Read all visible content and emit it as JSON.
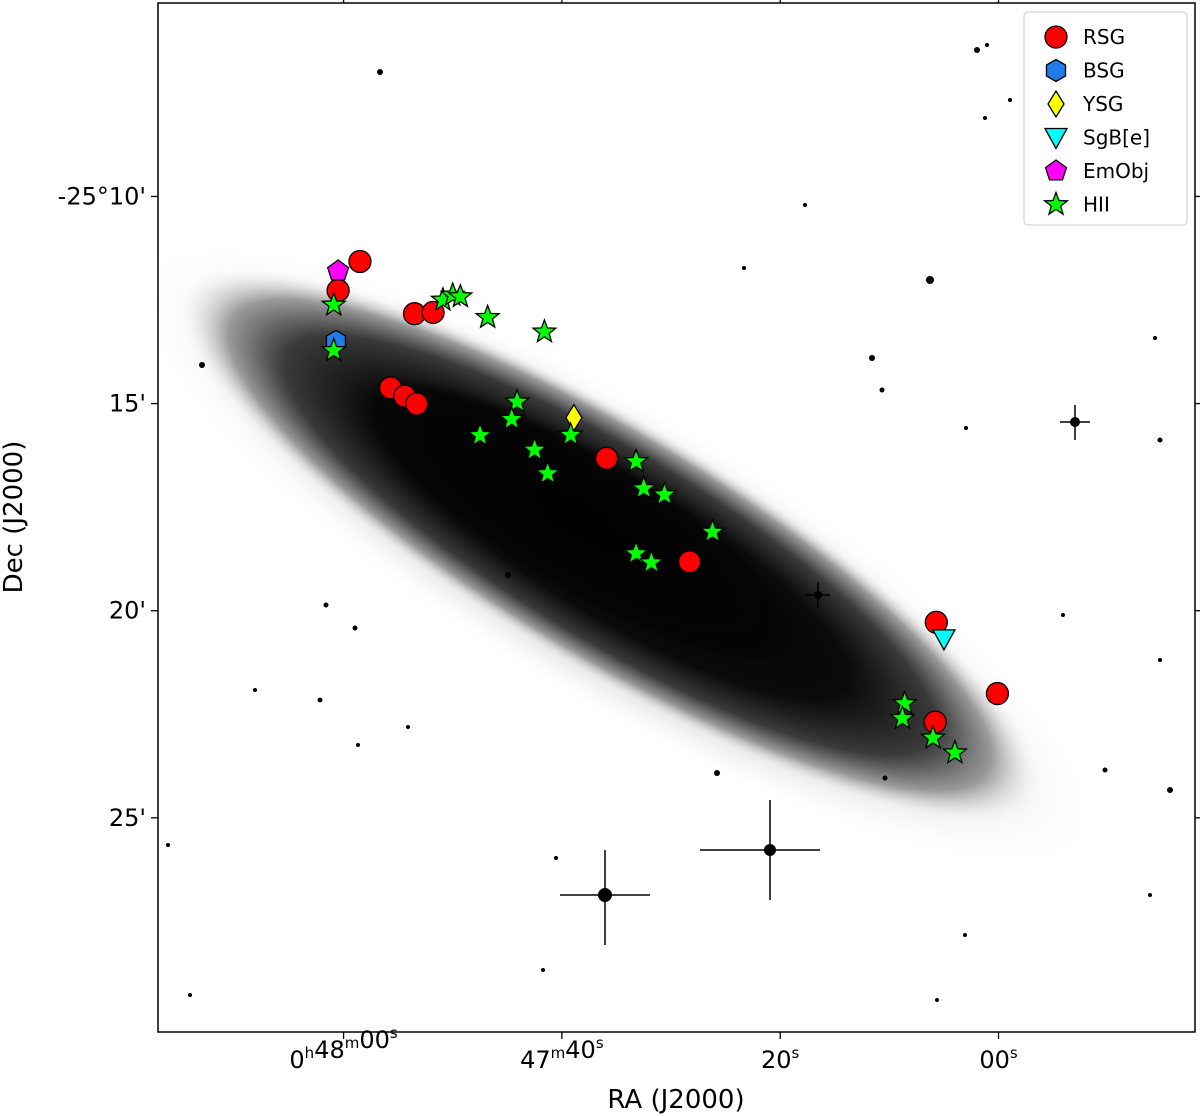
{
  "chart_data": {
    "type": "scatter",
    "title": "",
    "xlabel": "RA (J2000)",
    "ylabel": "Dec (J2000)",
    "x_unit": "seconds of RA relative to 0h47m00s",
    "y_unit": "arcminutes of Dec below -25°00'",
    "xlim": [
      77,
      -18
    ],
    "ylim": [
      30.17,
      5.33
    ],
    "grid": false,
    "legend_position": "top-right",
    "x_ticks": [
      {
        "value": 60,
        "h": "0",
        "m": "48",
        "s": "00"
      },
      {
        "value": 40,
        "h": "",
        "m": "47",
        "s": "40"
      },
      {
        "value": 20,
        "h": "",
        "m": "",
        "s": "20"
      },
      {
        "value": 0,
        "h": "",
        "m": "",
        "s": "00"
      }
    ],
    "y_ticks": [
      {
        "value": 10,
        "label": "-25°10'"
      },
      {
        "value": 15,
        "label": "15'"
      },
      {
        "value": 20,
        "label": "20'"
      },
      {
        "value": 25,
        "label": "25'"
      }
    ],
    "series": [
      {
        "name": "RSG",
        "marker": "circle",
        "color": "#ff0000",
        "points": [
          [
            58.5,
            11.57
          ],
          [
            60.5,
            12.27
          ],
          [
            53.5,
            12.83
          ],
          [
            51.8,
            12.8
          ],
          [
            55.7,
            14.62
          ],
          [
            54.4,
            14.82
          ],
          [
            53.3,
            15.01
          ],
          [
            35.9,
            16.32
          ],
          [
            28.3,
            18.82
          ],
          [
            5.7,
            20.28
          ],
          [
            0.1,
            22.0
          ],
          [
            5.8,
            22.69
          ]
        ]
      },
      {
        "name": "BSG",
        "marker": "hexagon",
        "color": "#1e7be8",
        "points": [
          [
            60.7,
            13.5
          ]
        ]
      },
      {
        "name": "YSG",
        "marker": "diamond",
        "color": "#ffff00",
        "points": [
          [
            38.9,
            15.34
          ]
        ]
      },
      {
        "name": "SgB[e]",
        "marker": "triangle-down",
        "color": "#00ffff",
        "points": [
          [
            5.0,
            20.68
          ]
        ]
      },
      {
        "name": "EmObj",
        "marker": "pentagon",
        "color": "#ff00ff",
        "points": [
          [
            60.5,
            11.8
          ]
        ]
      },
      {
        "name": "HII",
        "marker": "star",
        "color": "#00ff00",
        "points": [
          [
            60.9,
            12.62
          ],
          [
            60.9,
            13.72
          ],
          [
            50.9,
            12.5
          ],
          [
            50.0,
            12.38
          ],
          [
            49.3,
            12.42
          ],
          [
            46.8,
            12.92
          ],
          [
            41.6,
            13.27
          ],
          [
            44.1,
            14.96
          ],
          [
            44.6,
            15.38
          ],
          [
            42.5,
            16.12
          ],
          [
            41.3,
            16.69
          ],
          [
            39.2,
            15.76
          ],
          [
            33.2,
            16.4
          ],
          [
            32.5,
            17.05
          ],
          [
            30.6,
            17.2
          ],
          [
            33.2,
            18.62
          ],
          [
            31.8,
            18.84
          ],
          [
            26.2,
            18.1
          ],
          [
            8.6,
            22.24
          ],
          [
            8.8,
            22.6
          ],
          [
            6.0,
            23.07
          ],
          [
            4.0,
            23.43
          ],
          [
            47.5,
            15.77
          ]
        ]
      }
    ]
  },
  "labels": {
    "xlabel": "RA (J2000)",
    "ylabel": "Dec (J2000)"
  }
}
